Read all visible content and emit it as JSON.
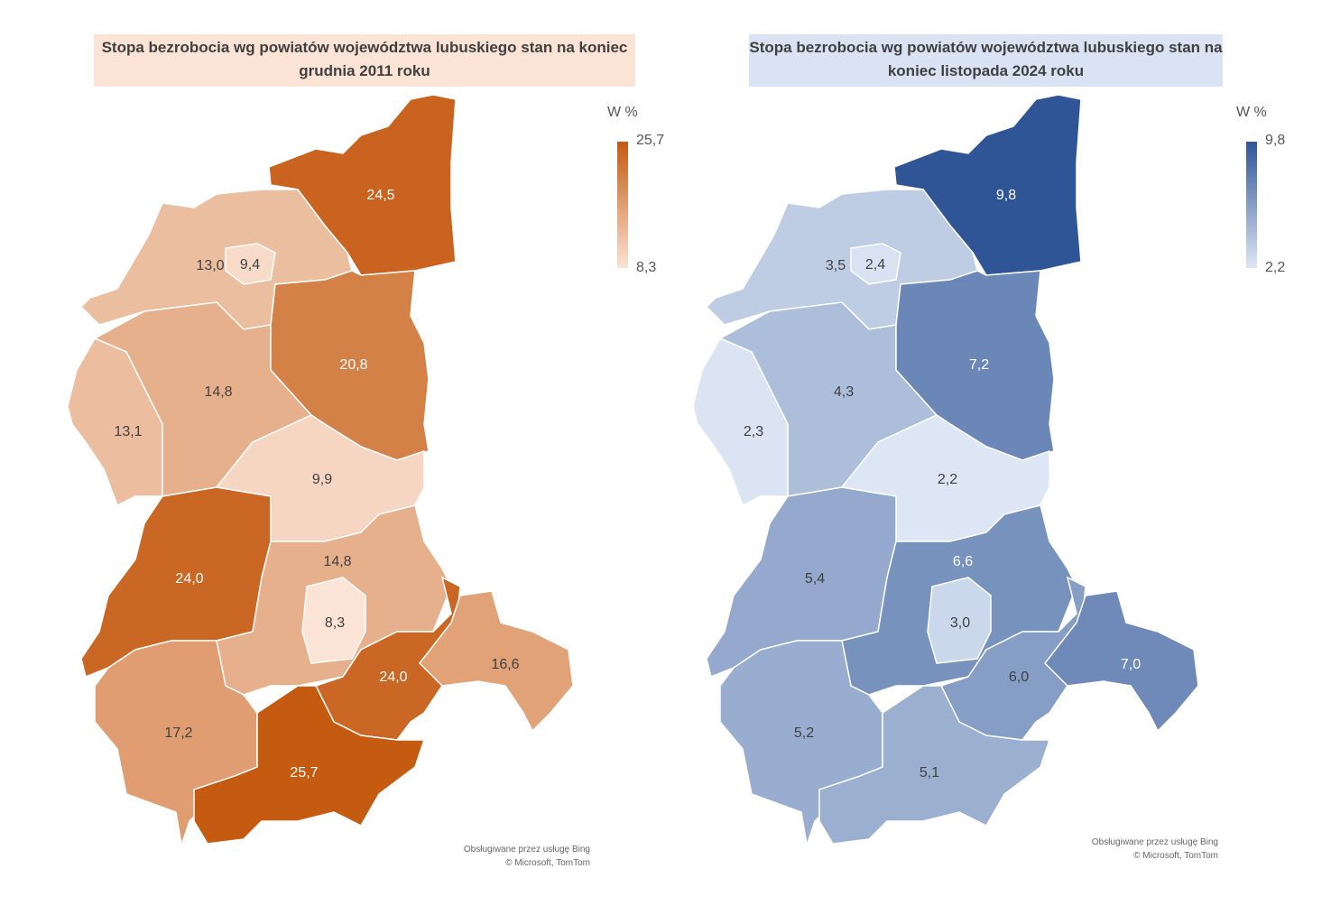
{
  "maps": [
    {
      "title": "Stopa bezrobocia wg powiatów województwa lubuskiego stan na koniec grudnia 2011 roku",
      "legend": {
        "unit": "W %",
        "max": "25,7",
        "min": "8,3",
        "max_value": 25.7,
        "min_value": 8.3,
        "color_low": "#fbe3d5",
        "color_high": "#c55a11"
      },
      "values": [
        24.5,
        13.0,
        9.4,
        14.8,
        13.1,
        20.8,
        9.9,
        24.0,
        14.8,
        8.3,
        24.0,
        16.6,
        17.2,
        25.7
      ],
      "labels": [
        "24,5",
        "13,0",
        "9,4",
        "14,8",
        "13,1",
        "20,8",
        "9,9",
        "24,0",
        "14,8",
        "8,3",
        "24,0",
        "16,6",
        "17,2",
        "25,7"
      ],
      "credit": [
        "Obsługiwane przez usługę Bing",
        "© Microsoft, TomTom"
      ]
    },
    {
      "title": "Stopa bezrobocia wg powiatów województwa lubuskiego stan na koniec listopada 2024 roku",
      "legend": {
        "unit": "W %",
        "max": "9,8",
        "min": "2,2",
        "max_value": 9.8,
        "min_value": 2.2,
        "color_low": "#dde6f4",
        "color_high": "#2f5597"
      },
      "values": [
        9.8,
        3.5,
        2.4,
        4.3,
        2.3,
        7.2,
        2.2,
        5.4,
        6.6,
        3.0,
        6.0,
        7.0,
        5.2,
        5.1
      ],
      "labels": [
        "9,8",
        "3,5",
        "2,4",
        "4,3",
        "2,3",
        "7,2",
        "2,2",
        "5,4",
        "6,6",
        "3,0",
        "6,0",
        "7,0",
        "5,2",
        "5,1"
      ],
      "credit": [
        "Obsługiwane przez usługę Bing",
        "© Microsoft, TomTom"
      ]
    }
  ]
}
